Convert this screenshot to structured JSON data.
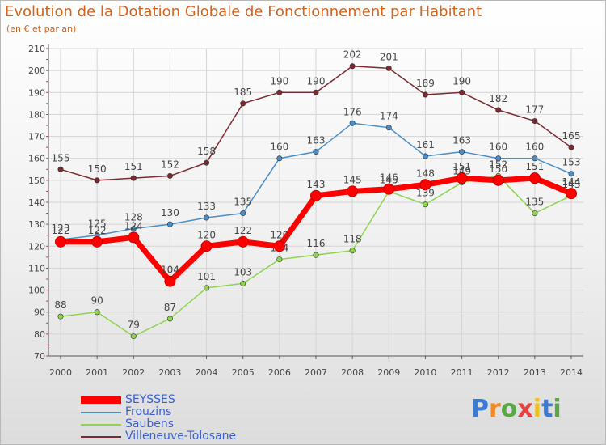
{
  "title": "Evolution de la Dotation Globale de Fonctionnement par Habitant",
  "subtitle": "(en € et par an)",
  "logo_text": "Proxiti",
  "chart_data": {
    "type": "line",
    "x": [
      "2000",
      "2001",
      "2002",
      "2003",
      "2004",
      "2005",
      "2006",
      "2007",
      "2008",
      "2009",
      "2010",
      "2011",
      "2012",
      "2013",
      "2014"
    ],
    "ylim": [
      70,
      210
    ],
    "yticks": [
      70,
      80,
      90,
      100,
      110,
      120,
      130,
      140,
      150,
      160,
      170,
      180,
      190,
      200,
      210
    ],
    "grid": true,
    "legend_position": "bottom-left",
    "series": [
      {
        "name": "Villeneuve-Tolosane",
        "color": "#7b2a2f",
        "values": [
          155,
          150,
          151,
          152,
          158,
          185,
          190,
          190,
          202,
          201,
          189,
          190,
          182,
          177,
          165
        ]
      },
      {
        "name": "Frouzins",
        "color": "#4a8ec9",
        "values": [
          123,
          125,
          128,
          130,
          133,
          135,
          160,
          163,
          176,
          174,
          161,
          163,
          160,
          160,
          153
        ]
      },
      {
        "name": "Saubens",
        "color": "#8fd44f",
        "values": [
          88,
          90,
          79,
          87,
          101,
          103,
          114,
          116,
          118,
          145,
          139,
          149,
          152,
          135,
          143
        ]
      },
      {
        "name": "SEYSSES",
        "color": "#ff0000",
        "values": [
          122,
          122,
          124,
          104,
          120,
          122,
          120,
          143,
          145,
          146,
          148,
          151,
          150,
          151,
          144
        ]
      }
    ]
  }
}
